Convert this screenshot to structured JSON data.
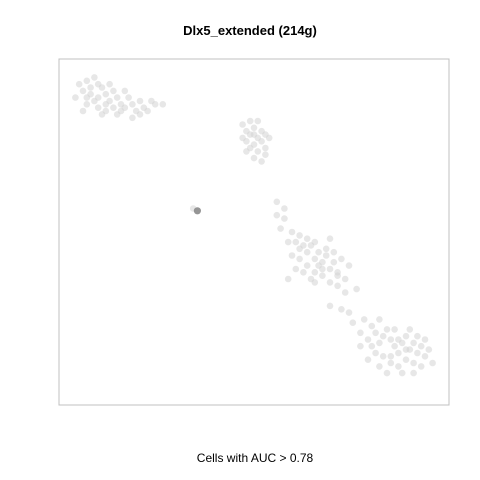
{
  "chart_data": {
    "type": "scatter",
    "title": "Dlx5_extended (214g)",
    "xlabel": "Cells with AUC > 0.78",
    "ylabel": "",
    "grid": false,
    "axes_visible": false,
    "point_color": "#d3d3d3",
    "highlight_color": "#8f8f8f",
    "series": [
      {
        "points": [
          [
            0.04,
            0.94
          ],
          [
            0.06,
            0.95
          ],
          [
            0.08,
            0.96
          ],
          [
            0.09,
            0.94
          ],
          [
            0.05,
            0.92
          ],
          [
            0.07,
            0.91
          ],
          [
            0.1,
            0.93
          ],
          [
            0.11,
            0.91
          ],
          [
            0.08,
            0.89
          ],
          [
            0.06,
            0.88
          ],
          [
            0.09,
            0.87
          ],
          [
            0.12,
            0.89
          ],
          [
            0.13,
            0.92
          ],
          [
            0.14,
            0.9
          ],
          [
            0.15,
            0.88
          ],
          [
            0.11,
            0.86
          ],
          [
            0.16,
            0.87
          ],
          [
            0.17,
            0.9
          ],
          [
            0.18,
            0.88
          ],
          [
            0.19,
            0.86
          ],
          [
            0.2,
            0.89
          ],
          [
            0.21,
            0.87
          ],
          [
            0.05,
            0.86
          ],
          [
            0.03,
            0.9
          ],
          [
            0.1,
            0.85
          ],
          [
            0.14,
            0.85
          ],
          [
            0.18,
            0.84
          ],
          [
            0.22,
            0.86
          ],
          [
            0.24,
            0.88
          ],
          [
            0.26,
            0.88
          ],
          [
            0.12,
            0.94
          ],
          [
            0.07,
            0.93
          ],
          [
            0.09,
            0.9
          ],
          [
            0.13,
            0.87
          ],
          [
            0.16,
            0.92
          ],
          [
            0.2,
            0.85
          ],
          [
            0.23,
            0.89
          ],
          [
            0.06,
            0.9
          ],
          [
            0.15,
            0.86
          ],
          [
            0.11,
            0.88
          ],
          [
            0.47,
            0.82
          ],
          [
            0.48,
            0.8
          ],
          [
            0.49,
            0.79
          ],
          [
            0.5,
            0.81
          ],
          [
            0.51,
            0.78
          ],
          [
            0.52,
            0.8
          ],
          [
            0.48,
            0.77
          ],
          [
            0.5,
            0.76
          ],
          [
            0.52,
            0.77
          ],
          [
            0.53,
            0.79
          ],
          [
            0.49,
            0.75
          ],
          [
            0.51,
            0.74
          ],
          [
            0.53,
            0.75
          ],
          [
            0.5,
            0.72
          ],
          [
            0.52,
            0.71
          ],
          [
            0.47,
            0.78
          ],
          [
            0.54,
            0.78
          ],
          [
            0.49,
            0.83
          ],
          [
            0.51,
            0.83
          ],
          [
            0.53,
            0.73
          ],
          [
            0.48,
            0.74
          ],
          [
            0.5,
            0.79
          ],
          [
            0.56,
            0.55
          ],
          [
            0.58,
            0.54
          ],
          [
            0.6,
            0.5
          ],
          [
            0.61,
            0.47
          ],
          [
            0.62,
            0.49
          ],
          [
            0.63,
            0.46
          ],
          [
            0.64,
            0.44
          ],
          [
            0.65,
            0.46
          ],
          [
            0.66,
            0.42
          ],
          [
            0.67,
            0.44
          ],
          [
            0.68,
            0.41
          ],
          [
            0.69,
            0.43
          ],
          [
            0.7,
            0.39
          ],
          [
            0.71,
            0.41
          ],
          [
            0.72,
            0.38
          ],
          [
            0.62,
            0.42
          ],
          [
            0.64,
            0.4
          ],
          [
            0.66,
            0.38
          ],
          [
            0.68,
            0.37
          ],
          [
            0.7,
            0.35
          ],
          [
            0.72,
            0.34
          ],
          [
            0.74,
            0.36
          ],
          [
            0.75,
            0.4
          ],
          [
            0.63,
            0.38
          ],
          [
            0.65,
            0.36
          ],
          [
            0.67,
            0.4
          ],
          [
            0.69,
            0.45
          ],
          [
            0.71,
            0.44
          ],
          [
            0.73,
            0.42
          ],
          [
            0.6,
            0.43
          ],
          [
            0.61,
            0.39
          ],
          [
            0.59,
            0.36
          ],
          [
            0.66,
            0.47
          ],
          [
            0.7,
            0.48
          ],
          [
            0.74,
            0.32
          ],
          [
            0.77,
            0.33
          ],
          [
            0.64,
            0.48
          ],
          [
            0.68,
            0.39
          ],
          [
            0.72,
            0.37
          ],
          [
            0.66,
            0.35
          ],
          [
            0.73,
            0.27
          ],
          [
            0.76,
            0.23
          ],
          [
            0.78,
            0.2
          ],
          [
            0.8,
            0.18
          ],
          [
            0.79,
            0.24
          ],
          [
            0.81,
            0.22
          ],
          [
            0.82,
            0.2
          ],
          [
            0.83,
            0.17
          ],
          [
            0.84,
            0.19
          ],
          [
            0.85,
            0.21
          ],
          [
            0.86,
            0.18
          ],
          [
            0.87,
            0.16
          ],
          [
            0.88,
            0.14
          ],
          [
            0.89,
            0.17
          ],
          [
            0.9,
            0.19
          ],
          [
            0.91,
            0.15
          ],
          [
            0.92,
            0.17
          ],
          [
            0.93,
            0.14
          ],
          [
            0.94,
            0.16
          ],
          [
            0.95,
            0.13
          ],
          [
            0.96,
            0.15
          ],
          [
            0.84,
            0.13
          ],
          [
            0.86,
            0.11
          ],
          [
            0.88,
            0.1
          ],
          [
            0.9,
            0.12
          ],
          [
            0.92,
            0.11
          ],
          [
            0.94,
            0.1
          ],
          [
            0.82,
            0.14
          ],
          [
            0.85,
            0.08
          ],
          [
            0.89,
            0.08
          ],
          [
            0.93,
            0.19
          ],
          [
            0.87,
            0.21
          ],
          [
            0.91,
            0.21
          ],
          [
            0.8,
            0.12
          ],
          [
            0.83,
            0.24
          ],
          [
            0.95,
            0.18
          ],
          [
            0.97,
            0.11
          ],
          [
            0.86,
            0.13
          ],
          [
            0.9,
            0.15
          ],
          [
            0.88,
            0.18
          ],
          [
            0.7,
            0.28
          ],
          [
            0.75,
            0.26
          ],
          [
            0.83,
            0.1
          ],
          [
            0.92,
            0.08
          ],
          [
            0.78,
            0.16
          ],
          [
            0.81,
            0.16
          ],
          [
            0.34,
            0.57
          ],
          [
            0.56,
            0.59
          ],
          [
            0.58,
            0.57
          ],
          [
            0.57,
            0.51
          ],
          [
            0.59,
            0.47
          ],
          [
            0.62,
            0.45
          ]
        ]
      },
      {
        "points": [
          [
            0.351,
            0.563
          ]
        ]
      }
    ],
    "xlim": [
      0,
      1
    ],
    "ylim": [
      0,
      1
    ]
  }
}
